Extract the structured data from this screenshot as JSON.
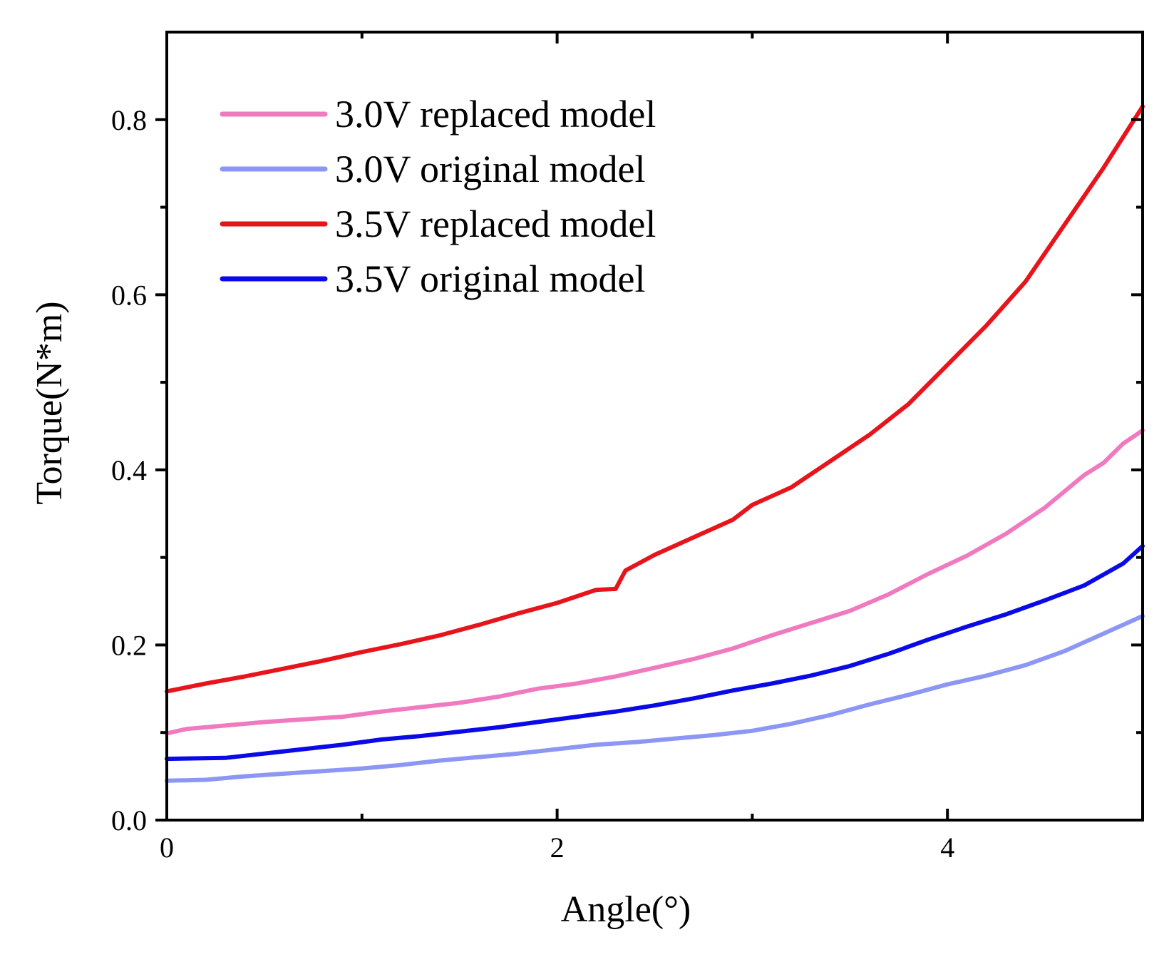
{
  "chart_data": {
    "type": "line",
    "title": "",
    "xlabel": "Angle(°)",
    "ylabel": "Torque(N*m)",
    "xlim": [
      0,
      5
    ],
    "ylim": [
      0,
      0.9
    ],
    "xticks": [
      0,
      2,
      4
    ],
    "xtick_labels": [
      "0",
      "2",
      "4"
    ],
    "xminor": [
      1,
      3,
      5
    ],
    "yticks": [
      0.0,
      0.2,
      0.4,
      0.6,
      0.8
    ],
    "ytick_labels": [
      "0.0",
      "0.2",
      "0.4",
      "0.6",
      "0.8"
    ],
    "yminor": [
      0.1,
      0.3,
      0.5,
      0.7
    ],
    "grid": false,
    "legend_position": "top-left",
    "series": [
      {
        "name": "3.0V replaced model",
        "color": "#f07ac0",
        "x": [
          0,
          0.1,
          0.3,
          0.5,
          0.7,
          0.9,
          1.1,
          1.3,
          1.5,
          1.7,
          1.9,
          2.1,
          2.3,
          2.5,
          2.7,
          2.9,
          3.1,
          3.3,
          3.5,
          3.7,
          3.9,
          4.1,
          4.3,
          4.5,
          4.7,
          4.8,
          4.9,
          5.0
        ],
        "values": [
          0.099,
          0.104,
          0.108,
          0.112,
          0.115,
          0.118,
          0.124,
          0.129,
          0.134,
          0.141,
          0.15,
          0.156,
          0.164,
          0.174,
          0.184,
          0.196,
          0.211,
          0.225,
          0.239,
          0.258,
          0.281,
          0.302,
          0.327,
          0.357,
          0.394,
          0.408,
          0.43,
          0.445
        ]
      },
      {
        "name": "3.0V original model",
        "color": "#8c96f5",
        "x": [
          0,
          0.2,
          0.4,
          0.6,
          0.8,
          1.0,
          1.2,
          1.4,
          1.6,
          1.8,
          2.0,
          2.2,
          2.4,
          2.6,
          2.8,
          3.0,
          3.2,
          3.4,
          3.6,
          3.8,
          4.0,
          4.2,
          4.4,
          4.6,
          4.8,
          5.0
        ],
        "values": [
          0.045,
          0.046,
          0.05,
          0.053,
          0.056,
          0.059,
          0.063,
          0.068,
          0.072,
          0.076,
          0.081,
          0.086,
          0.089,
          0.093,
          0.097,
          0.102,
          0.11,
          0.12,
          0.132,
          0.143,
          0.155,
          0.165,
          0.177,
          0.193,
          0.213,
          0.233
        ]
      },
      {
        "name": "3.5V replaced model",
        "color": "#e8141c",
        "x": [
          0,
          0.2,
          0.4,
          0.6,
          0.8,
          1.0,
          1.2,
          1.4,
          1.6,
          1.8,
          2.0,
          2.2,
          2.3,
          2.35,
          2.5,
          2.7,
          2.9,
          3.0,
          3.1,
          3.2,
          3.3,
          3.4,
          3.6,
          3.8,
          4.0,
          4.2,
          4.4,
          4.6,
          4.8,
          5.0
        ],
        "values": [
          0.147,
          0.156,
          0.164,
          0.173,
          0.182,
          0.192,
          0.201,
          0.211,
          0.223,
          0.236,
          0.248,
          0.263,
          0.264,
          0.285,
          0.303,
          0.323,
          0.343,
          0.36,
          0.37,
          0.38,
          0.395,
          0.41,
          0.44,
          0.475,
          0.52,
          0.565,
          0.615,
          0.68,
          0.745,
          0.815
        ]
      },
      {
        "name": "3.5V original model",
        "color": "#0a0ae6",
        "x": [
          0,
          0.3,
          0.5,
          0.7,
          0.9,
          1.1,
          1.3,
          1.5,
          1.7,
          1.9,
          2.1,
          2.3,
          2.5,
          2.7,
          2.9,
          3.1,
          3.3,
          3.5,
          3.7,
          3.9,
          4.1,
          4.3,
          4.5,
          4.7,
          4.9,
          5.0
        ],
        "values": [
          0.07,
          0.071,
          0.076,
          0.081,
          0.086,
          0.092,
          0.096,
          0.101,
          0.106,
          0.112,
          0.118,
          0.124,
          0.131,
          0.139,
          0.148,
          0.156,
          0.165,
          0.176,
          0.19,
          0.206,
          0.221,
          0.235,
          0.251,
          0.268,
          0.293,
          0.313
        ]
      }
    ]
  }
}
